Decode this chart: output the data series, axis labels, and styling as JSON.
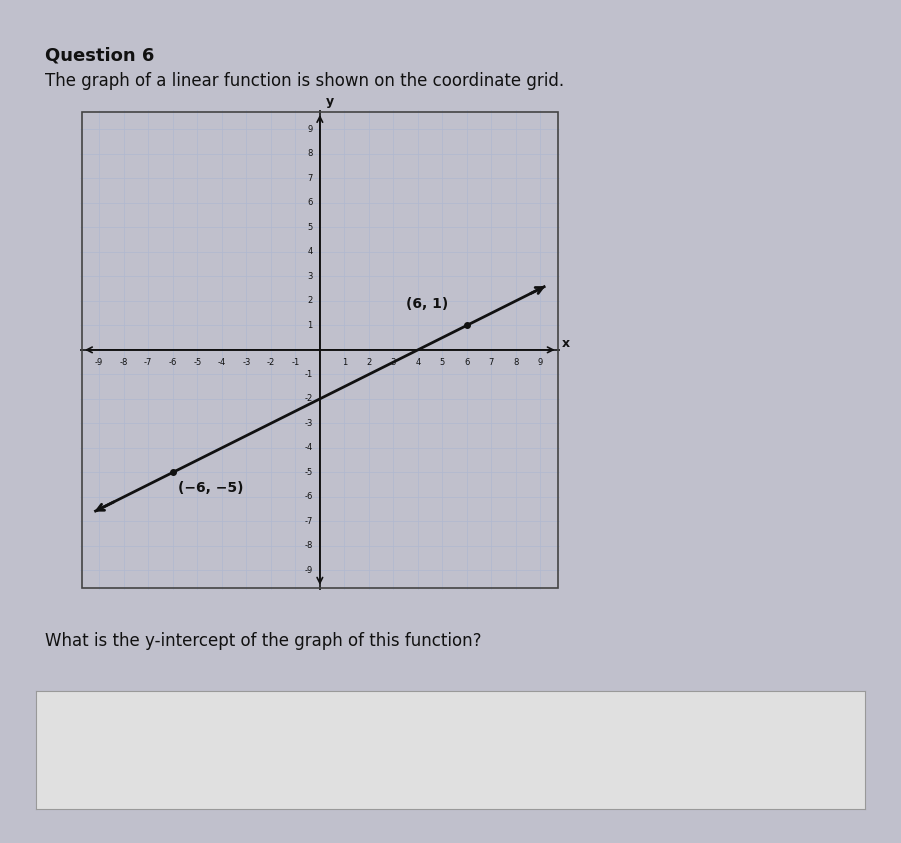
{
  "title": "Question 6",
  "subtitle": "The graph of a linear function is shown on the coordinate grid.",
  "question": "What is the y-intercept of the graph of this function?",
  "point1": [
    -6,
    -5
  ],
  "point2": [
    6,
    1
  ],
  "slope": 0.5,
  "y_intercept": -2,
  "xlim": [
    -9.8,
    9.8
  ],
  "ylim": [
    -9.8,
    9.8
  ],
  "grid_color": "#b0b8d0",
  "axis_color": "#111111",
  "line_color": "#111111",
  "point_color": "#111111",
  "label1_text": "(−6, −5)",
  "label2_text": "(6, 1)",
  "card_bg": "#f0f0f0",
  "plot_bg_color": "#ffffff",
  "outer_bg": "#c0c0cc",
  "answer_box_bg": "#e0e0e0"
}
